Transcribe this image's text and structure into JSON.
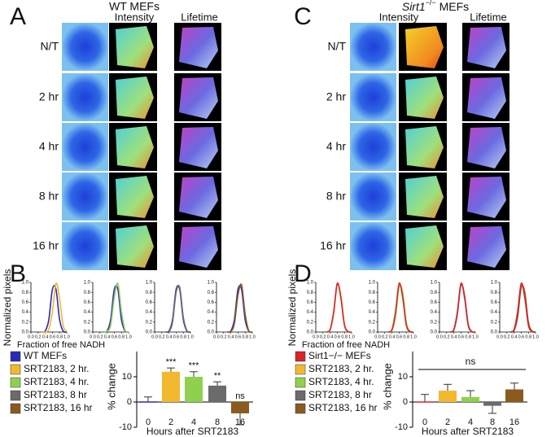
{
  "panels": {
    "A": {
      "label": "A",
      "title": "WT MEFs",
      "columns": [
        "Intensity",
        "Lifetime"
      ],
      "rows": [
        "N/T",
        "2 hr",
        "4 hr",
        "8 hr",
        "16 hr"
      ]
    },
    "C": {
      "label": "C",
      "title": {
        "gene": "Sirt1",
        "genotype": "−/−",
        "suffix": "MEFs"
      },
      "columns": [
        "Intensity",
        "Lifetime"
      ],
      "rows": [
        "N/T",
        "2 hr",
        "4 hr",
        "8 hr",
        "16 hr"
      ]
    }
  },
  "chart_data": [
    {
      "type": "line",
      "panel_label": "B",
      "ylabel": "Normalized pixels",
      "xlabel": "Fraction of free NADH",
      "xlim": [
        0,
        1
      ],
      "ylim": [
        0,
        1
      ],
      "xticks": [
        {
          "value": 0,
          "label": "0.0"
        },
        {
          "value": 0.2,
          "label": "0.2"
        },
        {
          "value": 0.4,
          "label": "0.4"
        },
        {
          "value": 0.6,
          "label": "0.6"
        },
        {
          "value": 0.8,
          "label": "0.8"
        },
        {
          "value": 1,
          "label": "1.0"
        }
      ],
      "yticks": [
        {
          "value": 0,
          "label": "0.0"
        },
        {
          "value": 0.2,
          "label": "0.2"
        },
        {
          "value": 0.4,
          "label": "0.4"
        },
        {
          "value": 0.6,
          "label": "0.6"
        },
        {
          "value": 0.8,
          "label": "0.8"
        },
        {
          "value": 1,
          "label": "1.0"
        }
      ],
      "x": [
        0.3,
        0.4,
        0.5,
        0.6,
        0.7,
        0.8,
        0.9,
        1.0
      ],
      "subplots": [
        {
          "series": [
            {
              "color": "#2a2ab8",
              "values": [
                0,
                0.02,
                0.25,
                0.86,
                0.86,
                0.25,
                0.02,
                0
              ]
            },
            {
              "color": "#f2b830",
              "values": [
                0,
                0,
                0.06,
                0.41,
                0.98,
                0.67,
                0.13,
                0.01
              ]
            }
          ]
        },
        {
          "series": [
            {
              "color": "#2a2ab8",
              "values": [
                0,
                0.02,
                0.25,
                0.86,
                0.86,
                0.25,
                0.02,
                0
              ]
            },
            {
              "color": "#8fd14f",
              "values": [
                0,
                0.01,
                0.14,
                0.69,
                0.98,
                0.41,
                0.04,
                0
              ]
            }
          ]
        },
        {
          "series": [
            {
              "color": "#2a2ab8",
              "values": [
                0,
                0.02,
                0.25,
                0.86,
                0.86,
                0.25,
                0.02,
                0
              ]
            },
            {
              "color": "#6b6b6b",
              "values": [
                0,
                0.01,
                0.2,
                0.8,
                0.9,
                0.3,
                0.03,
                0
              ]
            }
          ]
        },
        {
          "series": [
            {
              "color": "#2a2ab8",
              "values": [
                0,
                0.02,
                0.25,
                0.86,
                0.86,
                0.25,
                0.02,
                0
              ]
            },
            {
              "color": "#8b5a1e",
              "values": [
                0,
                0.01,
                0.17,
                0.74,
                0.95,
                0.36,
                0.03,
                0
              ]
            }
          ]
        }
      ]
    },
    {
      "type": "bar",
      "ylabel": "% change",
      "xlabel": "Hours after SRT2183",
      "categories": [
        "0",
        "2",
        "4",
        "8",
        "16"
      ],
      "values": [
        0,
        12,
        10,
        6.5,
        -4.5
      ],
      "errors": [
        2,
        1.5,
        2,
        1.5,
        4.5
      ],
      "colors": [
        "#2a2ab8",
        "#f2b830",
        "#8fd14f",
        "#6b6b6b",
        "#8b5a1e"
      ],
      "annotations": [
        {
          "index": 1,
          "text": "***"
        },
        {
          "index": 2,
          "text": "***"
        },
        {
          "index": 3,
          "text": "**"
        },
        {
          "index": 4,
          "text": "ns"
        }
      ],
      "ylim": [
        -10,
        20
      ],
      "yticks": [
        -10,
        0,
        10
      ],
      "legend": [
        {
          "label": "WT MEFs",
          "color": "#2a2ab8"
        },
        {
          "label": "SRT2183, 2 hr.",
          "color": "#f2b830"
        },
        {
          "label": "SRT2183, 4 hr.",
          "color": "#8fd14f"
        },
        {
          "label": "SRT2183, 8 hr",
          "color": "#6b6b6b"
        },
        {
          "label": "SRT2183, 16 hr",
          "color": "#8b5a1e"
        }
      ]
    },
    {
      "type": "line",
      "panel_label": "D",
      "ylabel": "Normalized pixels",
      "xlabel": "Fraction of free NADH",
      "xlim": [
        0,
        1
      ],
      "ylim": [
        0,
        1
      ],
      "xticks": [
        {
          "value": 0,
          "label": "0.0"
        },
        {
          "value": 0.2,
          "label": "0.2"
        },
        {
          "value": 0.4,
          "label": "0.4"
        },
        {
          "value": 0.6,
          "label": "0.6"
        },
        {
          "value": 0.8,
          "label": "0.8"
        },
        {
          "value": 1,
          "label": "1.0"
        }
      ],
      "yticks": [
        {
          "value": 0,
          "label": "0.0"
        },
        {
          "value": 0.2,
          "label": "0.2"
        },
        {
          "value": 0.4,
          "label": "0.4"
        },
        {
          "value": 0.6,
          "label": "0.6"
        },
        {
          "value": 0.8,
          "label": "0.8"
        },
        {
          "value": 1,
          "label": "1.0"
        }
      ],
      "x": [
        0.3,
        0.4,
        0.5,
        0.6,
        0.7,
        0.8,
        0.9,
        1.0
      ],
      "subplots": [
        {
          "series": [
            {
              "color": "#f2b830",
              "values": [
                0,
                0.04,
                0.36,
                0.95,
                0.74,
                0.17,
                0.01,
                0
              ]
            },
            {
              "color": "#d8232a",
              "values": [
                0,
                0.05,
                0.41,
                0.98,
                0.69,
                0.14,
                0.01,
                0
              ]
            }
          ]
        },
        {
          "series": [
            {
              "color": "#8fd14f",
              "values": [
                0,
                0.03,
                0.3,
                0.9,
                0.8,
                0.2,
                0.02,
                0
              ]
            },
            {
              "color": "#d8232a",
              "values": [
                0,
                0.05,
                0.41,
                0.98,
                0.69,
                0.14,
                0.01,
                0
              ]
            }
          ]
        },
        {
          "series": [
            {
              "color": "#6b6b6b",
              "values": [
                0,
                0.04,
                0.36,
                0.95,
                0.74,
                0.17,
                0.01,
                0
              ]
            },
            {
              "color": "#d8232a",
              "values": [
                0,
                0.05,
                0.41,
                0.98,
                0.69,
                0.14,
                0.01,
                0
              ]
            }
          ]
        },
        {
          "series": [
            {
              "color": "#8b5a1e",
              "values": [
                0,
                0.03,
                0.3,
                0.9,
                0.8,
                0.2,
                0.02,
                0
              ]
            },
            {
              "color": "#d8232a",
              "values": [
                0,
                0.05,
                0.41,
                0.98,
                0.69,
                0.14,
                0.01,
                0
              ]
            }
          ]
        }
      ]
    },
    {
      "type": "bar",
      "ylabel": "% change",
      "xlabel": "Hours after SRT2183",
      "categories": [
        "0",
        "2",
        "4",
        "8",
        "16"
      ],
      "values": [
        0,
        4.5,
        2,
        -1.5,
        5
      ],
      "errors": [
        3,
        2.5,
        2.5,
        3,
        2.5
      ],
      "colors": [
        "#d8232a",
        "#f2b830",
        "#8fd14f",
        "#6b6b6b",
        "#8b5a1e"
      ],
      "significance": "ns",
      "ylim": [
        -10,
        20
      ],
      "yticks": [
        -10,
        0,
        10
      ],
      "legend": [
        {
          "label": "Sirt1−/− MEFs",
          "color": "#d8232a"
        },
        {
          "label": "SRT2183, 2 hr.",
          "color": "#f2b830"
        },
        {
          "label": "SRT2183, 4 hr.",
          "color": "#8fd14f"
        },
        {
          "label": "SRT2183, 8 hr",
          "color": "#6b6b6b"
        },
        {
          "label": "SRT2183, 16 hr",
          "color": "#8b5a1e"
        }
      ]
    }
  ]
}
